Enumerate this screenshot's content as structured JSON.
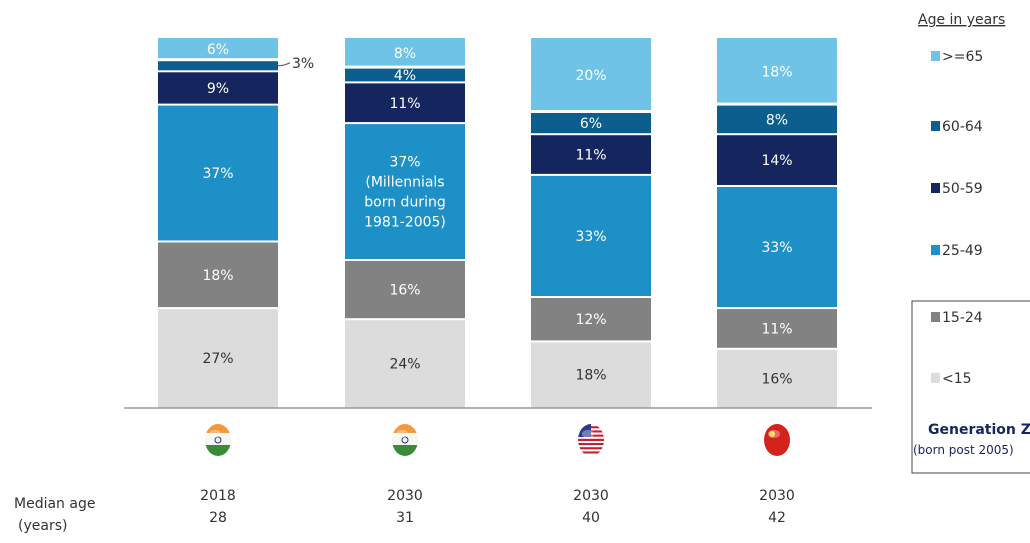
{
  "chart_data": {
    "type": "bar",
    "stacked": true,
    "normalized": true,
    "categories": [
      "2018",
      "2030",
      "2030",
      "2030"
    ],
    "countries": [
      "India",
      "India",
      "USA",
      "China"
    ],
    "median_age_label": "Median age",
    "median_age_sublabel": "(years)",
    "median_ages": [
      "28",
      "31",
      "40",
      "42"
    ],
    "legend_title": "Age in years",
    "legend_placement": "right",
    "series": [
      {
        "name": "<15",
        "color": "#dcdcdc",
        "text_dark": true,
        "values": [
          27,
          24,
          18,
          16
        ]
      },
      {
        "name": "15-24",
        "color": "#828282",
        "text_dark": false,
        "values": [
          18,
          16,
          12,
          11
        ]
      },
      {
        "name": "25-49",
        "color": "#1e90c8",
        "text_dark": false,
        "values": [
          37,
          37,
          33,
          33
        ]
      },
      {
        "name": "50-59",
        "color": "#15255e",
        "text_dark": false,
        "values": [
          9,
          11,
          11,
          14
        ]
      },
      {
        "name": "60-64",
        "color": "#0c5e8e",
        "text_dark": false,
        "values": [
          3,
          4,
          6,
          8
        ]
      },
      {
        "name": ">=65",
        "color": "#6ec3e6",
        "text_dark": false,
        "values": [
          6,
          8,
          20,
          18
        ]
      }
    ],
    "segment_labels": [
      [
        "27%",
        "24%",
        "18%",
        "16%"
      ],
      [
        "18%",
        "16%",
        "12%",
        "11%"
      ],
      [
        "37%",
        "37%\n(Millennials\nborn during\n1981-2005)",
        "33%",
        "33%"
      ],
      [
        "9%",
        "11%",
        "11%",
        "14%"
      ],
      [
        "3%",
        "4%",
        "6%",
        "8%"
      ],
      [
        "6%",
        "8%",
        "20%",
        "18%"
      ]
    ],
    "callouts": [
      {
        "bar": 0,
        "series": 4,
        "text": "3%"
      }
    ],
    "generation_z_box": {
      "title": "Generation Z",
      "subtitle": "(born post 2005)"
    }
  }
}
